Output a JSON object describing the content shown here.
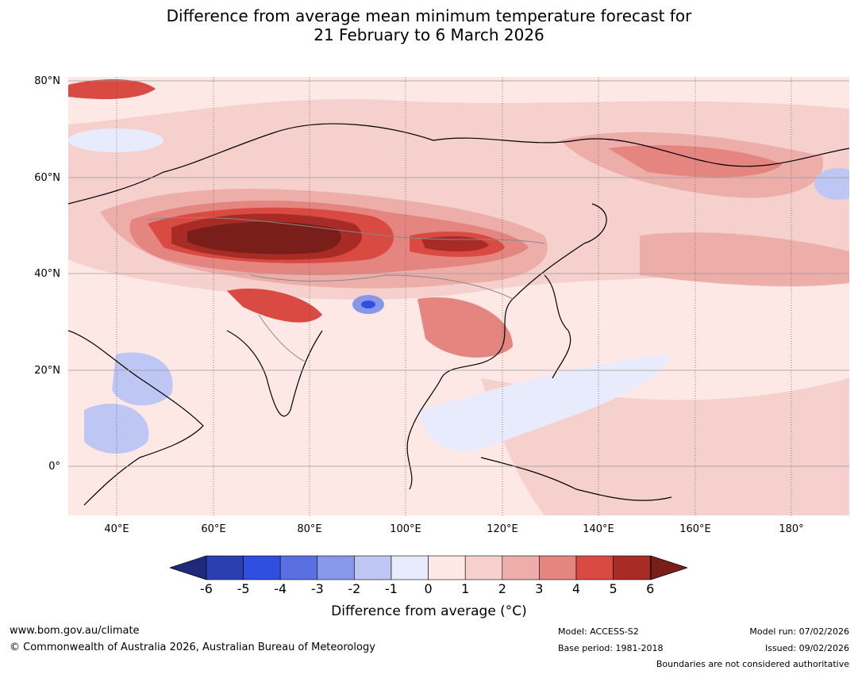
{
  "title": {
    "line1": "Difference from average mean minimum temperature forecast for",
    "line2": "21 February to 6 March 2026"
  },
  "map": {
    "lat_labels": [
      "80°N",
      "60°N",
      "40°N",
      "20°N",
      "0°"
    ],
    "lon_labels": [
      "40°E",
      "60°E",
      "80°E",
      "100°E",
      "120°E",
      "140°E",
      "160°E",
      "180°"
    ]
  },
  "colorbar": {
    "ticks": [
      "-6",
      "-5",
      "-4",
      "-3",
      "-2",
      "-1",
      "0",
      "1",
      "2",
      "3",
      "4",
      "5",
      "6"
    ],
    "colors": [
      "#1f2b7a",
      "#2a3fb0",
      "#2f4fe0",
      "#5a70e0",
      "#8797ea",
      "#bec6f4",
      "#e8ebfb",
      "#fde8e6",
      "#f6d0cd",
      "#edaeaa",
      "#e58580",
      "#d84a42",
      "#a82b25",
      "#7a1e1a"
    ],
    "title": "Difference from average (°C)"
  },
  "footer": {
    "website": "www.bom.gov.au/climate",
    "copyright": "© Commonwealth of Australia 2026, Australian Bureau of Meteorology",
    "model": "Model: ACCESS-S2",
    "base_period": "Base period: 1981-2018",
    "model_run": "Model run: 07/02/2026",
    "issued": "Issued: 09/02/2026",
    "boundaries": "Boundaries are not considered authoritative"
  }
}
